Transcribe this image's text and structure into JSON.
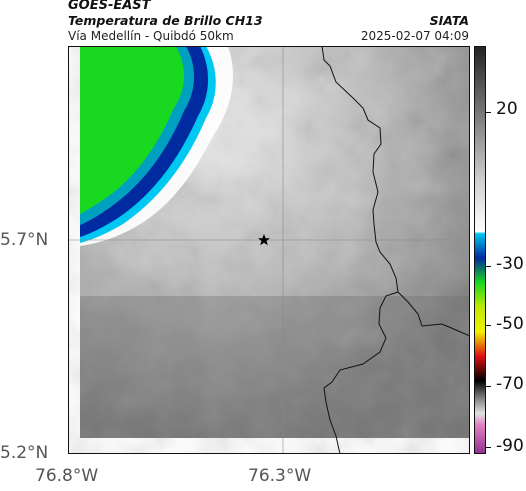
{
  "header": {
    "satellite": "GOES-EAST",
    "product": "Temperatura de Brillo CH13",
    "route": "Vía Medellín - Quibdó 50km",
    "org": "SIATA",
    "datetime": "2025-02-07 04:09"
  },
  "map": {
    "lat_labels": [
      "5.7°N",
      "5.2°N"
    ],
    "lon_labels": [
      "76.8°W",
      "76.3°W"
    ],
    "marker": "star"
  },
  "colorbar": {
    "labels": [
      "20",
      "-30",
      "-50",
      "-70",
      "-90"
    ],
    "colors": {
      "warm_gray_dark": "#2a2a2a",
      "warm_gray_light": "#d8d8d8",
      "white": "#ffffff",
      "cyan": "#00c8f0",
      "blue": "#002aa0",
      "green": "#18d820",
      "yellow": "#f0f000",
      "red": "#e01010",
      "black": "#000000",
      "magenta": "#b040b0"
    }
  }
}
